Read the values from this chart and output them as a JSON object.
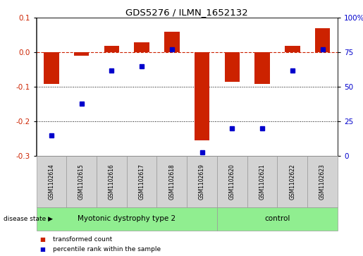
{
  "title": "GDS5276 / ILMN_1652132",
  "samples": [
    "GSM1102614",
    "GSM1102615",
    "GSM1102616",
    "GSM1102617",
    "GSM1102618",
    "GSM1102619",
    "GSM1102620",
    "GSM1102621",
    "GSM1102622",
    "GSM1102623"
  ],
  "red_bars": [
    -0.09,
    -0.01,
    0.02,
    0.03,
    0.06,
    -0.255,
    -0.085,
    -0.09,
    0.02,
    0.07
  ],
  "blue_dots_pct": [
    15,
    38,
    62,
    65,
    77,
    3,
    20,
    20,
    62,
    77
  ],
  "ylim_left": [
    -0.3,
    0.1
  ],
  "yticks_left": [
    -0.3,
    -0.2,
    -0.1,
    0.0,
    0.1
  ],
  "yticks_right": [
    0,
    25,
    50,
    75,
    100
  ],
  "n_disease": 6,
  "n_control": 4,
  "red_color": "#CC2200",
  "blue_color": "#0000CC",
  "green_color": "#90EE90",
  "gray_color": "#D3D3D3",
  "bar_width": 0.5,
  "disease_label": "Myotonic dystrophy type 2",
  "control_label": "control",
  "disease_state_label": "disease state",
  "legend_labels": [
    "transformed count",
    "percentile rank within the sample"
  ]
}
